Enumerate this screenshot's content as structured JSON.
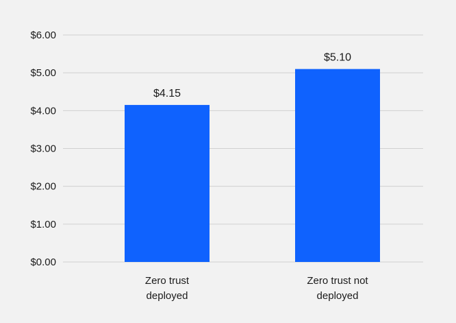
{
  "chart_data": {
    "type": "bar",
    "title": "",
    "xlabel": "",
    "ylabel": "",
    "categories": [
      "Zero trust deployed",
      "Zero trust not deployed"
    ],
    "category_label_lines": [
      [
        "Zero trust",
        "deployed"
      ],
      [
        "Zero trust not",
        "deployed"
      ]
    ],
    "values": [
      4.15,
      5.1
    ],
    "data_labels": [
      "$4.15",
      "$5.10"
    ],
    "ylim": [
      0,
      6
    ],
    "y_ticks": [
      0,
      1,
      2,
      3,
      4,
      5,
      6
    ],
    "y_tick_labels": [
      "$0.00",
      "$1.00",
      "$2.00",
      "$3.00",
      "$4.00",
      "$5.00",
      "$6.00"
    ],
    "grid": true,
    "legend": "none",
    "colors": {
      "bar": "#0f62fe",
      "grid": "#d0d0d0",
      "background": "#f2f2f2",
      "text": "#1a1a1a"
    }
  }
}
